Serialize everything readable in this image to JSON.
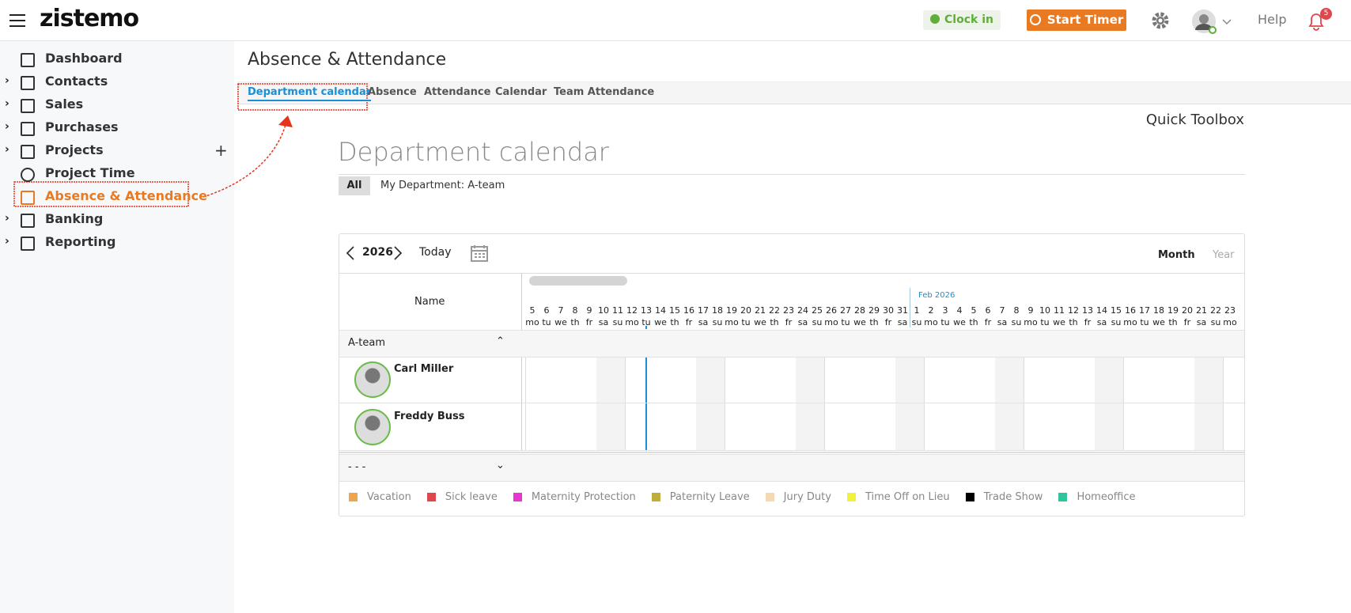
{
  "header": {
    "logo": "zistemo",
    "clock_in": "Clock in",
    "start_timer": "Start Timer",
    "help": "Help",
    "notifications": "5"
  },
  "sidebar": [
    {
      "label": "Dashboard",
      "expandable": false
    },
    {
      "label": "Contacts",
      "expandable": true
    },
    {
      "label": "Sales",
      "expandable": true
    },
    {
      "label": "Purchases",
      "expandable": true
    },
    {
      "label": "Projects",
      "expandable": true
    },
    {
      "label": "Project Time",
      "expandable": false
    },
    {
      "label": "Absence & Attendance",
      "expandable": false,
      "active": true
    },
    {
      "label": "Banking",
      "expandable": true
    },
    {
      "label": "Reporting",
      "expandable": true
    }
  ],
  "page_title": "Absence & Attendance",
  "tabs": [
    {
      "label": "Department calendar",
      "active": true
    },
    {
      "label": "Absence"
    },
    {
      "label": "Attendance"
    },
    {
      "label": "Calendar"
    },
    {
      "label": "Team Attendance"
    }
  ],
  "quick_toolbox": "Quick Toolbox",
  "section_title": "Department calendar",
  "filters": [
    "All",
    "My Department: A-team"
  ],
  "calendar": {
    "year": "2026",
    "today": "Today",
    "views": [
      "Month",
      "Year"
    ],
    "name_header": "Name",
    "month_label": "Feb 2026",
    "days": [
      {
        "n": "5",
        "w": "mo"
      },
      {
        "n": "6",
        "w": "tu"
      },
      {
        "n": "7",
        "w": "we"
      },
      {
        "n": "8",
        "w": "th"
      },
      {
        "n": "9",
        "w": "fr"
      },
      {
        "n": "10",
        "w": "sa"
      },
      {
        "n": "11",
        "w": "su"
      },
      {
        "n": "12",
        "w": "mo"
      },
      {
        "n": "13",
        "w": "tu"
      },
      {
        "n": "14",
        "w": "we"
      },
      {
        "n": "15",
        "w": "th"
      },
      {
        "n": "16",
        "w": "fr"
      },
      {
        "n": "17",
        "w": "sa"
      },
      {
        "n": "18",
        "w": "su"
      },
      {
        "n": "19",
        "w": "mo"
      },
      {
        "n": "20",
        "w": "tu"
      },
      {
        "n": "21",
        "w": "we"
      },
      {
        "n": "22",
        "w": "th"
      },
      {
        "n": "23",
        "w": "fr"
      },
      {
        "n": "24",
        "w": "sa"
      },
      {
        "n": "25",
        "w": "su"
      },
      {
        "n": "26",
        "w": "mo"
      },
      {
        "n": "27",
        "w": "tu"
      },
      {
        "n": "28",
        "w": "we"
      },
      {
        "n": "29",
        "w": "th"
      },
      {
        "n": "30",
        "w": "fr"
      },
      {
        "n": "31",
        "w": "sa"
      },
      {
        "n": "1",
        "w": "su"
      },
      {
        "n": "2",
        "w": "mo"
      },
      {
        "n": "3",
        "w": "tu"
      },
      {
        "n": "4",
        "w": "we"
      },
      {
        "n": "5",
        "w": "th"
      },
      {
        "n": "6",
        "w": "fr"
      },
      {
        "n": "7",
        "w": "sa"
      },
      {
        "n": "8",
        "w": "su"
      },
      {
        "n": "9",
        "w": "mo"
      },
      {
        "n": "10",
        "w": "tu"
      },
      {
        "n": "11",
        "w": "we"
      },
      {
        "n": "12",
        "w": "th"
      },
      {
        "n": "13",
        "w": "fr"
      },
      {
        "n": "14",
        "w": "sa"
      },
      {
        "n": "15",
        "w": "su"
      },
      {
        "n": "16",
        "w": "mo"
      },
      {
        "n": "17",
        "w": "tu"
      },
      {
        "n": "18",
        "w": "we"
      },
      {
        "n": "19",
        "w": "th"
      },
      {
        "n": "20",
        "w": "fr"
      },
      {
        "n": "21",
        "w": "sa"
      },
      {
        "n": "22",
        "w": "su"
      },
      {
        "n": "23",
        "w": "mo"
      }
    ],
    "groups": [
      {
        "name": "A-team",
        "members": [
          "Carl Miller",
          "Freddy Buss"
        ]
      },
      {
        "name": "- - -",
        "members": []
      }
    ]
  },
  "legend": [
    {
      "label": "Vacation",
      "color": "#f0a54a"
    },
    {
      "label": "Sick leave",
      "color": "#e0474c"
    },
    {
      "label": "Maternity Protection",
      "color": "#e836d0"
    },
    {
      "label": "Paternity Leave",
      "color": "#bfae3a"
    },
    {
      "label": "Jury Duty",
      "color": "#f5d9b0"
    },
    {
      "label": "Time Off on Lieu",
      "color": "#f2f23a"
    },
    {
      "label": "Trade Show",
      "color": "#000000"
    },
    {
      "label": "Homeoffice",
      "color": "#2fc49c"
    }
  ]
}
